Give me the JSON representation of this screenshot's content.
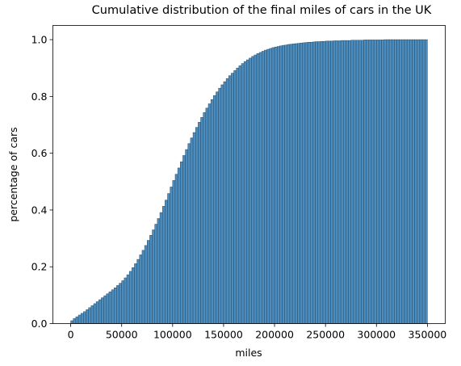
{
  "chart_data": {
    "type": "bar",
    "subtype": "cumulative histogram",
    "title": "Cumulative distribution of the final miles of cars in the UK",
    "xlabel": "miles",
    "ylabel": "percentage of cars",
    "xlim": [
      -17500,
      367500
    ],
    "ylim": [
      0,
      1.05
    ],
    "x_ticks": [
      0,
      50000,
      100000,
      150000,
      200000,
      250000,
      300000,
      350000
    ],
    "x_tick_labels": [
      "0",
      "50000",
      "100000",
      "150000",
      "200000",
      "250000",
      "300000",
      "350000"
    ],
    "y_ticks": [
      0.0,
      0.2,
      0.4,
      0.6,
      0.8,
      1.0
    ],
    "y_tick_labels": [
      "0.0",
      "0.2",
      "0.4",
      "0.6",
      "0.8",
      "1.0"
    ],
    "grid": false,
    "legend": "none",
    "bar_color": "#4c8dbf",
    "bar_edge_color": "#2b4a63",
    "bin_width": 2500,
    "bin_start": 0,
    "values": [
      0.01,
      0.018,
      0.024,
      0.03,
      0.036,
      0.042,
      0.049,
      0.056,
      0.063,
      0.07,
      0.077,
      0.084,
      0.091,
      0.098,
      0.105,
      0.112,
      0.119,
      0.126,
      0.134,
      0.142,
      0.151,
      0.161,
      0.172,
      0.184,
      0.197,
      0.211,
      0.226,
      0.242,
      0.258,
      0.275,
      0.293,
      0.311,
      0.33,
      0.35,
      0.37,
      0.391,
      0.413,
      0.435,
      0.458,
      0.481,
      0.504,
      0.526,
      0.548,
      0.57,
      0.592,
      0.613,
      0.634,
      0.654,
      0.673,
      0.691,
      0.709,
      0.726,
      0.743,
      0.759,
      0.774,
      0.789,
      0.803,
      0.816,
      0.829,
      0.841,
      0.852,
      0.863,
      0.873,
      0.882,
      0.891,
      0.9,
      0.908,
      0.916,
      0.923,
      0.929,
      0.935,
      0.941,
      0.946,
      0.951,
      0.955,
      0.959,
      0.963,
      0.966,
      0.969,
      0.972,
      0.974,
      0.976,
      0.978,
      0.98,
      0.981,
      0.983,
      0.984,
      0.985,
      0.986,
      0.987,
      0.988,
      0.989,
      0.99,
      0.991,
      0.991,
      0.992,
      0.993,
      0.993,
      0.994,
      0.994,
      0.995,
      0.995,
      0.995,
      0.996,
      0.996,
      0.996,
      0.997,
      0.997,
      0.997,
      0.997,
      0.998,
      0.998,
      0.998,
      0.998,
      0.998,
      0.999,
      0.999,
      0.999,
      0.999,
      0.999,
      0.999,
      0.999,
      0.999,
      1.0,
      1.0,
      1.0,
      1.0,
      1.0,
      1.0,
      1.0,
      1.0,
      1.0,
      1.0,
      1.0,
      1.0,
      1.0,
      1.0,
      1.0,
      1.0,
      1.0
    ]
  }
}
